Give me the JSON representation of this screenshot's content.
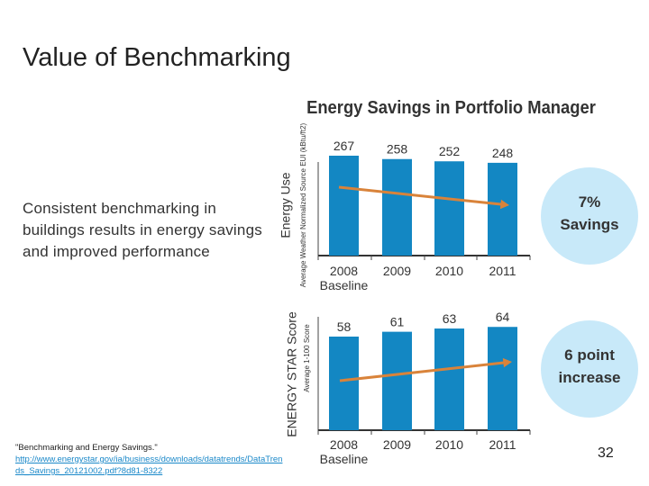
{
  "slide": {
    "title": "Value of Benchmarking",
    "body": "Consistent benchmarking in buildings results in energy savings and improved performance",
    "citation": "\"Benchmarking and Energy Savings.\"",
    "citation_link": "http://www.energystar.gov/ia/business/downloads/datatrends/DataTrends_Savings_20121002.pdf?8d81-8322",
    "page_number": "32"
  },
  "figure_title": "Energy Savings in Portfolio Manager",
  "colors": {
    "bar": "#1387c3",
    "arrow": "#d9833a",
    "circle": "#c8e9f9"
  },
  "chart_data": [
    {
      "type": "bar",
      "categories": [
        "2008",
        "2009",
        "2010",
        "2011"
      ],
      "category_sublabels": [
        "Baseline",
        "",
        "",
        ""
      ],
      "values": [
        267,
        258,
        252,
        248
      ],
      "ylabel": "Energy Use",
      "ylabel_sub": "Average Weather Normalized Source EUI (kBtu/ft2)",
      "ylim": [
        0,
        300
      ],
      "trend_arrow": "down",
      "callout": [
        "7%",
        "Savings"
      ]
    },
    {
      "type": "bar",
      "categories": [
        "2008",
        "2009",
        "2010",
        "2011"
      ],
      "category_sublabels": [
        "Baseline",
        "",
        "",
        ""
      ],
      "values": [
        58,
        61,
        63,
        64
      ],
      "ylabel": "ENERGY STAR Score",
      "ylabel_sub": "Average 1-100 Score",
      "ylim": [
        0,
        70
      ],
      "trend_arrow": "up",
      "callout": [
        "6 point",
        "increase"
      ]
    }
  ]
}
